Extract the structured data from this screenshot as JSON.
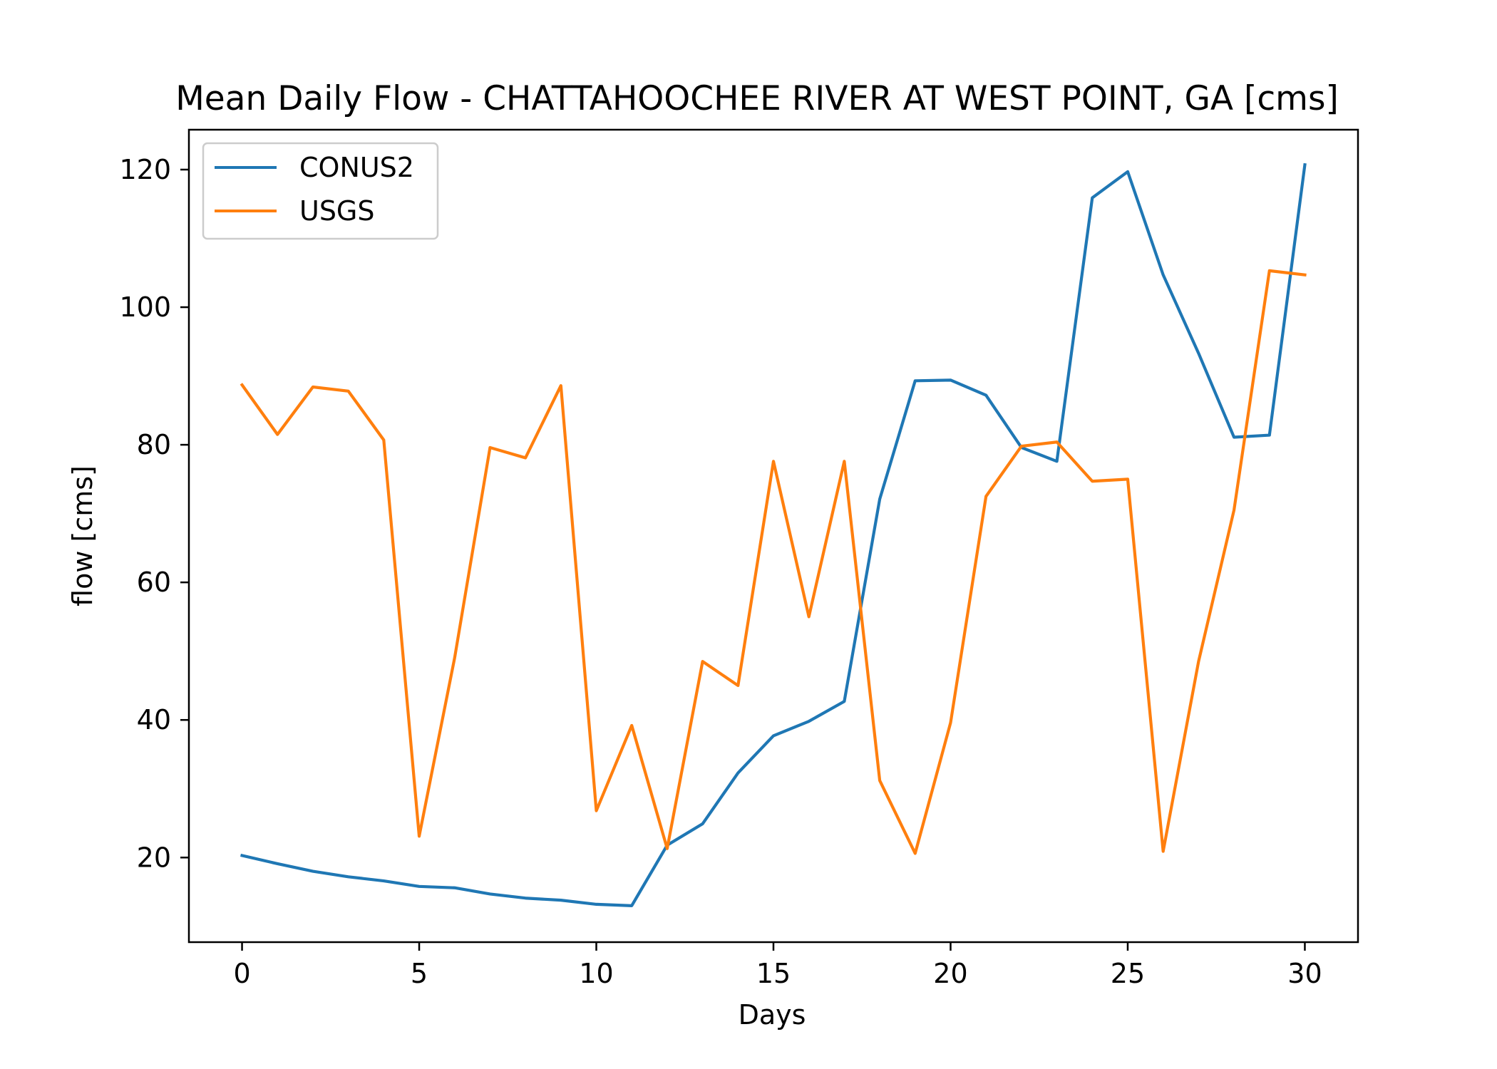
{
  "chart_data": {
    "type": "line",
    "title": "Mean Daily Flow - CHATTAHOOCHEE RIVER AT WEST POINT, GA [cms]",
    "xlabel": "Days",
    "ylabel": "flow [cms]",
    "xlim": [
      -1.5,
      31.5
    ],
    "ylim": [
      7.7,
      125.8
    ],
    "xticks": [
      0,
      5,
      10,
      15,
      20,
      25,
      30
    ],
    "yticks": [
      20,
      40,
      60,
      80,
      100,
      120
    ],
    "grid": false,
    "legend_position": "upper-left",
    "x": [
      0,
      1,
      2,
      3,
      4,
      5,
      6,
      7,
      8,
      9,
      10,
      11,
      12,
      13,
      14,
      15,
      16,
      17,
      18,
      19,
      20,
      21,
      22,
      23,
      24,
      25,
      26,
      27,
      28,
      29,
      30
    ],
    "series": [
      {
        "name": "CONUS2",
        "color": "#1f77b4",
        "values": [
          20.3,
          19.1,
          18.0,
          17.2,
          16.6,
          15.8,
          15.6,
          14.7,
          14.1,
          13.8,
          13.2,
          13.0,
          21.8,
          24.9,
          32.3,
          37.7,
          39.8,
          42.7,
          72.1,
          89.3,
          89.4,
          87.2,
          79.6,
          77.6,
          115.9,
          119.7,
          104.7,
          93.3,
          81.1,
          81.4,
          120.7
        ]
      },
      {
        "name": "USGS",
        "color": "#ff7f0e",
        "values": [
          88.7,
          81.5,
          88.4,
          87.8,
          80.7,
          23.1,
          49.0,
          79.6,
          78.1,
          88.6,
          26.8,
          39.2,
          21.3,
          48.5,
          45.0,
          77.6,
          55.0,
          77.6,
          31.2,
          20.6,
          39.6,
          72.5,
          79.8,
          80.4,
          74.7,
          75.0,
          20.9,
          48.5,
          70.5,
          105.3,
          104.7
        ]
      }
    ]
  }
}
